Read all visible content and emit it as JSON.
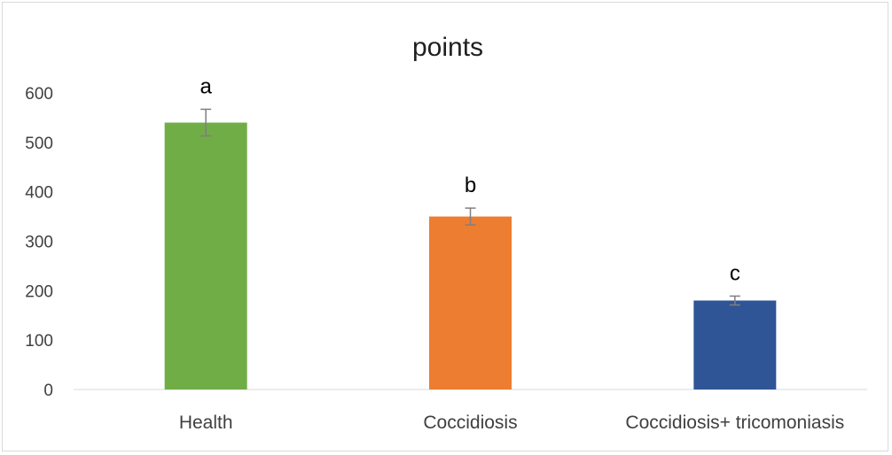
{
  "chart_data": {
    "type": "bar",
    "title": "points",
    "xlabel": "",
    "ylabel": "",
    "categories": [
      "Health",
      "Coccidiosis",
      "Coccidiosis+ tricomoniasis"
    ],
    "values": [
      540,
      350,
      180
    ],
    "error": [
      27,
      17,
      9
    ],
    "significance_labels": [
      "a",
      "b",
      "c"
    ],
    "colors": [
      "#70ad47",
      "#ed7d31",
      "#2f5597"
    ],
    "error_bar_color": "#7f7f7f",
    "ylim": [
      0,
      600
    ],
    "yticks": [
      0,
      100,
      200,
      300,
      400,
      500,
      600
    ],
    "grid": false,
    "legend": "none"
  }
}
